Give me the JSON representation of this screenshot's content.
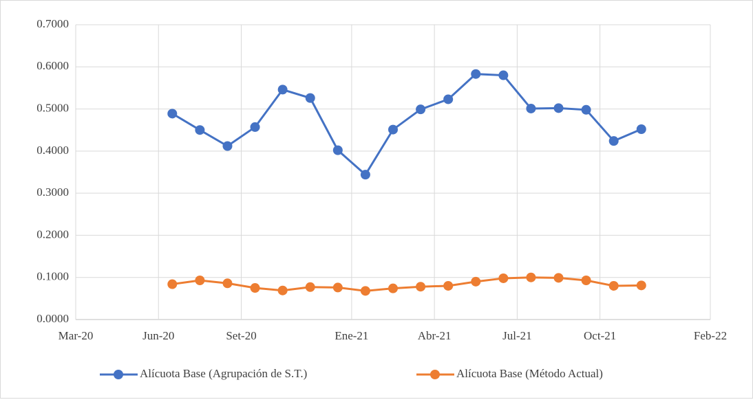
{
  "chart_data": {
    "type": "line",
    "x": [
      "2020-06",
      "2020-07",
      "2020-08",
      "2020-09",
      "2020-10",
      "2020-11",
      "2020-12",
      "2021-01",
      "2021-02",
      "2021-03",
      "2021-04",
      "2021-05",
      "2021-06",
      "2021-07",
      "2021-08",
      "2021-09",
      "2021-10",
      "2021-11"
    ],
    "series": [
      {
        "name": "Alícuota Base (Agrupación de S.T.)",
        "color": "#4472c4",
        "values": [
          0.489,
          0.45,
          0.412,
          0.457,
          0.546,
          0.526,
          0.402,
          0.344,
          0.451,
          0.499,
          0.523,
          0.583,
          0.58,
          0.501,
          0.502,
          0.498,
          0.424,
          0.452
        ]
      },
      {
        "name": "Alícuota Base (Método Actual)",
        "color": "#ed7d31",
        "values": [
          0.084,
          0.093,
          0.086,
          0.075,
          0.069,
          0.077,
          0.076,
          0.068,
          0.074,
          0.078,
          0.08,
          0.09,
          0.098,
          0.1,
          0.099,
          0.093,
          0.08,
          0.081
        ]
      }
    ],
    "xlim": [
      "2020-03",
      "2022-02"
    ],
    "xticks": [
      {
        "value": "2020-03",
        "label": "Mar-20"
      },
      {
        "value": "2020-06",
        "label": "Jun-20"
      },
      {
        "value": "2020-09",
        "label": "Set-20"
      },
      {
        "value": "2021-01",
        "label": "Ene-21"
      },
      {
        "value": "2021-04",
        "label": "Abr-21"
      },
      {
        "value": "2021-07",
        "label": "Jul-21"
      },
      {
        "value": "2021-10",
        "label": "Oct-21"
      },
      {
        "value": "2022-02",
        "label": "Feb-22"
      }
    ],
    "ylim": [
      0,
      0.7
    ],
    "yticks": [
      {
        "value": 0,
        "label": "0.0000"
      },
      {
        "value": 0.1,
        "label": "0.1000"
      },
      {
        "value": 0.2,
        "label": "0.2000"
      },
      {
        "value": 0.3,
        "label": "0.3000"
      },
      {
        "value": 0.4,
        "label": "0.4000"
      },
      {
        "value": 0.5,
        "label": "0.5000"
      },
      {
        "value": 0.6,
        "label": "0.6000"
      },
      {
        "value": 0.7,
        "label": "0.7000"
      }
    ],
    "grid": true,
    "legend": "bottom"
  }
}
